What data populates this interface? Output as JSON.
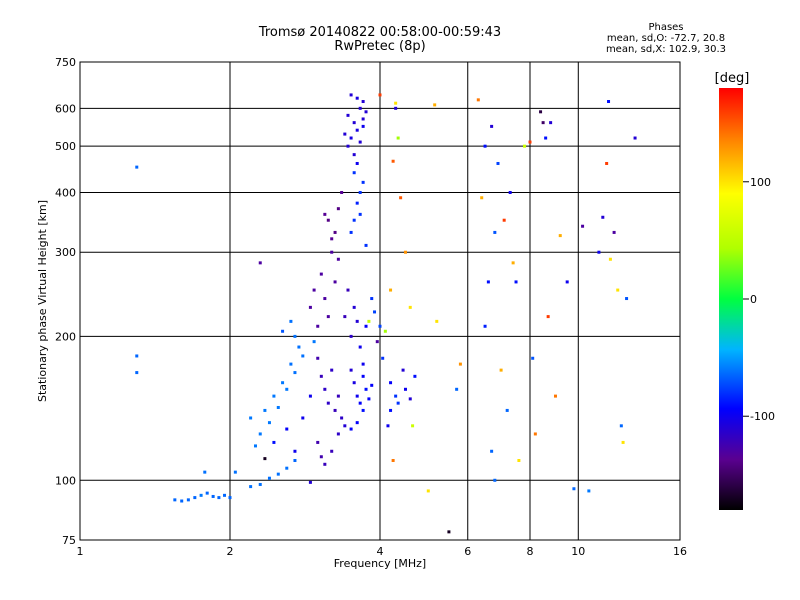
{
  "chart_data": {
    "type": "scatter",
    "title": "Tromsø 20140822 00:58:00-00:59:43",
    "subtitle": "RwPretec (8p)",
    "xlabel": "Frequency [MHz]",
    "ylabel": "Stationary phase Virtual Height [km]",
    "x_scale": "log2",
    "y_scale": "log",
    "xlim": [
      1,
      16
    ],
    "ylim": [
      75,
      750
    ],
    "x_ticks": [
      1,
      2,
      4,
      6,
      8,
      10,
      16
    ],
    "y_ticks": [
      75,
      100,
      200,
      300,
      400,
      500,
      600,
      750
    ],
    "grid": true,
    "phase_stats": {
      "heading": "Phases",
      "line_o": "mean, sd,O: -72.7, 20.8",
      "line_x": "mean, sd,X: 102.9, 30.3"
    },
    "colorbar": {
      "label": "[deg]",
      "ticks": [
        100,
        0,
        -100
      ],
      "range": [
        -180,
        180
      ]
    },
    "points": [
      [
        1.55,
        91,
        -65
      ],
      [
        1.6,
        90.5,
        -65
      ],
      [
        1.65,
        91,
        -65
      ],
      [
        1.7,
        92,
        -65
      ],
      [
        1.75,
        93,
        -60
      ],
      [
        1.8,
        94,
        -65
      ],
      [
        1.85,
        92.5,
        -65
      ],
      [
        1.9,
        92,
        -65
      ],
      [
        1.95,
        93,
        -65
      ],
      [
        2.0,
        92,
        -65
      ],
      [
        1.78,
        104,
        -62
      ],
      [
        2.05,
        104,
        -62
      ],
      [
        2.2,
        97,
        -62
      ],
      [
        2.3,
        98,
        -62
      ],
      [
        2.4,
        101,
        -62
      ],
      [
        2.5,
        103,
        -62
      ],
      [
        2.6,
        106,
        -62
      ],
      [
        2.7,
        110,
        -65
      ],
      [
        2.9,
        99,
        -110
      ],
      [
        1.3,
        182,
        -65
      ],
      [
        1.3,
        168,
        -65
      ],
      [
        1.3,
        452,
        -65
      ],
      [
        2.2,
        135,
        -60
      ],
      [
        2.25,
        118,
        -60
      ],
      [
        2.3,
        125,
        -60
      ],
      [
        2.35,
        140,
        -60
      ],
      [
        2.4,
        132,
        -60
      ],
      [
        2.45,
        150,
        -60
      ],
      [
        2.5,
        142,
        -60
      ],
      [
        2.55,
        160,
        -60
      ],
      [
        2.6,
        155,
        -60
      ],
      [
        2.65,
        175,
        -62
      ],
      [
        2.7,
        168,
        -62
      ],
      [
        2.75,
        190,
        -62
      ],
      [
        2.8,
        182,
        -62
      ],
      [
        2.45,
        120,
        -90
      ],
      [
        2.6,
        128,
        -95
      ],
      [
        2.7,
        115,
        -100
      ],
      [
        2.8,
        135,
        -100
      ],
      [
        2.9,
        150,
        -100
      ],
      [
        2.3,
        285,
        -130
      ],
      [
        2.55,
        205,
        -70
      ],
      [
        2.7,
        200,
        -62
      ],
      [
        2.65,
        215,
        -62
      ],
      [
        2.95,
        195,
        -60
      ],
      [
        2.35,
        111,
        -170
      ],
      [
        2.9,
        230,
        -130
      ],
      [
        2.95,
        250,
        -130
      ],
      [
        3.0,
        210,
        -130
      ],
      [
        3.05,
        270,
        -130
      ],
      [
        3.1,
        240,
        -130
      ],
      [
        3.15,
        220,
        -130
      ],
      [
        3.2,
        300,
        -130
      ],
      [
        3.25,
        260,
        -130
      ],
      [
        3.0,
        180,
        -125
      ],
      [
        3.05,
        165,
        -120
      ],
      [
        3.1,
        155,
        -115
      ],
      [
        3.15,
        145,
        -115
      ],
      [
        3.2,
        170,
        -115
      ],
      [
        3.25,
        140,
        -120
      ],
      [
        3.3,
        150,
        -120
      ],
      [
        3.35,
        135,
        -115
      ],
      [
        3.0,
        120,
        -125
      ],
      [
        3.05,
        112,
        -125
      ],
      [
        3.1,
        108,
        -120
      ],
      [
        3.2,
        115,
        -120
      ],
      [
        3.3,
        125,
        -115
      ],
      [
        3.4,
        130,
        -110
      ],
      [
        3.5,
        128,
        -95
      ],
      [
        3.6,
        132,
        -95
      ],
      [
        3.7,
        140,
        -90
      ],
      [
        3.25,
        330,
        -140
      ],
      [
        3.3,
        370,
        -140
      ],
      [
        3.35,
        400,
        -135
      ],
      [
        3.15,
        350,
        -140
      ],
      [
        3.2,
        320,
        -135
      ],
      [
        3.3,
        290,
        -130
      ],
      [
        3.1,
        360,
        -135
      ],
      [
        3.4,
        220,
        -120
      ],
      [
        3.45,
        250,
        -120
      ],
      [
        3.5,
        200,
        -115
      ],
      [
        3.55,
        230,
        -110
      ],
      [
        3.6,
        215,
        -110
      ],
      [
        3.65,
        190,
        -100
      ],
      [
        3.7,
        175,
        -100
      ],
      [
        3.75,
        210,
        -95
      ],
      [
        3.5,
        170,
        -110
      ],
      [
        3.55,
        160,
        -105
      ],
      [
        3.6,
        150,
        -100
      ],
      [
        3.65,
        145,
        -95
      ],
      [
        3.7,
        165,
        -95
      ],
      [
        3.75,
        155,
        -90
      ],
      [
        3.8,
        148,
        -95
      ],
      [
        3.85,
        158,
        -95
      ],
      [
        3.45,
        500,
        -110
      ],
      [
        3.5,
        520,
        -105
      ],
      [
        3.55,
        560,
        -110
      ],
      [
        3.6,
        540,
        -105
      ],
      [
        3.65,
        600,
        -110
      ],
      [
        3.7,
        620,
        -110
      ],
      [
        3.45,
        580,
        -110
      ],
      [
        3.5,
        640,
        -110
      ],
      [
        3.55,
        480,
        -110
      ],
      [
        3.6,
        460,
        -100
      ],
      [
        3.65,
        510,
        -110
      ],
      [
        3.7,
        570,
        -110
      ],
      [
        3.4,
        530,
        -110
      ],
      [
        3.75,
        590,
        -110
      ],
      [
        3.6,
        630,
        -105
      ],
      [
        3.7,
        550,
        -100
      ],
      [
        3.5,
        330,
        -80
      ],
      [
        3.55,
        350,
        -80
      ],
      [
        3.6,
        380,
        -85
      ],
      [
        3.65,
        400,
        -80
      ],
      [
        3.7,
        420,
        -80
      ],
      [
        3.55,
        440,
        -80
      ],
      [
        3.65,
        360,
        -80
      ],
      [
        3.75,
        310,
        -80
      ],
      [
        3.8,
        215,
        55
      ],
      [
        3.9,
        225,
        -75
      ],
      [
        4.0,
        210,
        -75
      ],
      [
        3.85,
        240,
        -80
      ],
      [
        3.95,
        195,
        -130
      ],
      [
        4.1,
        205,
        40
      ],
      [
        4.05,
        180,
        -80
      ],
      [
        4.15,
        130,
        -100
      ],
      [
        4.2,
        140,
        -90
      ],
      [
        4.3,
        150,
        -80
      ],
      [
        4.35,
        145,
        -80
      ],
      [
        4.2,
        160,
        -95
      ],
      [
        4.45,
        170,
        -110
      ],
      [
        4.5,
        155,
        -100
      ],
      [
        4.6,
        148,
        -110
      ],
      [
        4.0,
        640,
        160
      ],
      [
        4.2,
        250,
        120
      ],
      [
        4.25,
        465,
        150
      ],
      [
        4.3,
        600,
        -110
      ],
      [
        4.35,
        520,
        40
      ],
      [
        4.4,
        390,
        150
      ],
      [
        4.5,
        300,
        130
      ],
      [
        4.6,
        230,
        100
      ],
      [
        4.25,
        110,
        140
      ],
      [
        4.65,
        130,
        60
      ],
      [
        4.7,
        165,
        -90
      ],
      [
        4.3,
        615,
        100
      ],
      [
        5.0,
        95,
        100
      ],
      [
        5.15,
        610,
        120
      ],
      [
        5.5,
        78,
        -170
      ],
      [
        5.2,
        215,
        100
      ],
      [
        5.8,
        175,
        130
      ],
      [
        5.7,
        155,
        -65
      ],
      [
        6.3,
        625,
        140
      ],
      [
        6.4,
        390,
        120
      ],
      [
        6.5,
        500,
        -90
      ],
      [
        6.6,
        260,
        -90
      ],
      [
        6.7,
        550,
        -110
      ],
      [
        6.8,
        330,
        -70
      ],
      [
        6.5,
        210,
        -85
      ],
      [
        6.9,
        460,
        -75
      ],
      [
        7.0,
        170,
        120
      ],
      [
        6.7,
        115,
        -65
      ],
      [
        6.8,
        100,
        -65
      ],
      [
        7.1,
        350,
        160
      ],
      [
        7.2,
        140,
        -65
      ],
      [
        7.3,
        400,
        -100
      ],
      [
        7.4,
        285,
        120
      ],
      [
        7.5,
        260,
        -90
      ],
      [
        7.6,
        110,
        100
      ],
      [
        7.8,
        500,
        60
      ],
      [
        8.0,
        510,
        160
      ],
      [
        8.1,
        180,
        -70
      ],
      [
        8.2,
        125,
        140
      ],
      [
        8.4,
        590,
        -160
      ],
      [
        8.5,
        560,
        -150
      ],
      [
        8.6,
        520,
        -90
      ],
      [
        8.8,
        560,
        -110
      ],
      [
        8.7,
        220,
        160
      ],
      [
        9.0,
        150,
        140
      ],
      [
        9.2,
        325,
        120
      ],
      [
        9.5,
        260,
        -100
      ],
      [
        9.8,
        96,
        -65
      ],
      [
        10.2,
        340,
        -130
      ],
      [
        10.5,
        95,
        -60
      ],
      [
        11.0,
        300,
        -100
      ],
      [
        11.2,
        355,
        -110
      ],
      [
        11.4,
        460,
        160
      ],
      [
        11.6,
        290,
        100
      ],
      [
        12.0,
        250,
        100
      ],
      [
        12.2,
        130,
        -65
      ],
      [
        12.5,
        240,
        -70
      ],
      [
        13.0,
        520,
        -110
      ],
      [
        11.5,
        620,
        -90
      ],
      [
        11.8,
        330,
        -130
      ],
      [
        12.3,
        120,
        100
      ]
    ]
  }
}
